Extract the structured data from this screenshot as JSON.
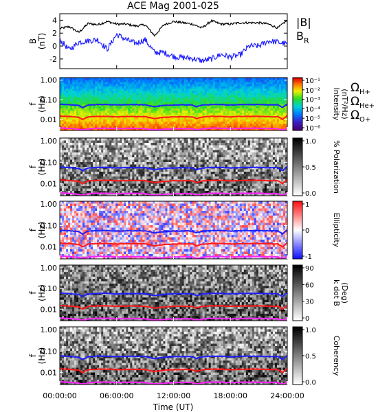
{
  "title": "ACE Mag 2001-025",
  "colors": {
    "B": "#000000",
    "BR": "#1f1fff",
    "H": "#1f1fff",
    "He": "#ff1a1a",
    "O": "#ff22ff",
    "gray_dark": "#111111",
    "gray_light": "#cfcfcf"
  },
  "chart_data": [
    {
      "type": "line",
      "panel": "B",
      "ylabel": "B\n(nT)",
      "ylim": [
        -3.5,
        5
      ],
      "yticks": [
        -2,
        0,
        2,
        4
      ],
      "xlim": [
        0,
        24
      ],
      "legend": [
        "|B|",
        "B_R"
      ],
      "series": [
        {
          "name": "|B|",
          "key": "B",
          "x": [
            0,
            1,
            2,
            3,
            4,
            5,
            6,
            7,
            8,
            9,
            10,
            11,
            12,
            13,
            14,
            15,
            16,
            17,
            18,
            19,
            20,
            21,
            22,
            23,
            24
          ],
          "y": [
            2.7,
            3.0,
            2.1,
            3.5,
            3.3,
            3.8,
            3.4,
            3.4,
            3.1,
            3.3,
            1.6,
            3.3,
            3.8,
            3.6,
            3.4,
            2.8,
            3.9,
            3.4,
            3.4,
            3.6,
            3.6,
            3.6,
            3.4,
            2.8,
            4.0
          ]
        },
        {
          "name": "B_R",
          "key": "BR",
          "x": [
            0,
            1,
            2,
            3,
            4,
            5,
            6,
            7,
            8,
            9,
            10,
            11,
            12,
            13,
            14,
            15,
            16,
            17,
            18,
            19,
            20,
            21,
            22,
            23,
            24
          ],
          "y": [
            1.0,
            -0.6,
            0.6,
            0.8,
            1.0,
            -0.5,
            1.8,
            1.0,
            0.4,
            1.0,
            -1.0,
            -1.0,
            -1.6,
            -1.8,
            -1.9,
            -2.3,
            -2.0,
            -1.3,
            -1.7,
            -1.4,
            0.0,
            0.0,
            0.8,
            0.6,
            0.3
          ]
        }
      ]
    },
    {
      "type": "heatmap",
      "panel": "intensity",
      "ylabel": "f\n(Hz)",
      "yticks": [
        "1.00",
        "0.10",
        "0.01"
      ],
      "colorbar_label": "Intensity\n(nT²/Hz)",
      "colorbar_ticks": [
        "10⁻¹",
        "10⁻²",
        "10⁻³",
        "10⁻⁴",
        "10⁻⁵",
        "10⁻⁶"
      ],
      "legend": [
        "Ω_H+",
        "Ω_He+",
        "Ω_O+"
      ]
    },
    {
      "type": "heatmap",
      "panel": "polarization",
      "ylabel": "f\n(Hz)",
      "yticks": [
        "1.00",
        "0.10",
        "0.01"
      ],
      "colorbar_label": "% Polarization",
      "colorbar_ticks": [
        "1.0",
        "0.5",
        "0.0"
      ]
    },
    {
      "type": "heatmap",
      "panel": "ellipticity",
      "ylabel": "f\n(Hz)",
      "yticks": [
        "1.00",
        "0.10",
        "0.01"
      ],
      "colorbar_label": "Ellipticity",
      "colorbar_ticks": [
        "1",
        "0",
        "-1"
      ]
    },
    {
      "type": "heatmap",
      "panel": "kdotb",
      "ylabel": "f\n(Hz)",
      "yticks": [
        "1.00",
        "0.10",
        "0.01"
      ],
      "colorbar_label": "k dot B\n(Deg)",
      "colorbar_ticks": [
        "90",
        "60",
        "30",
        "0"
      ]
    },
    {
      "type": "heatmap",
      "panel": "coherency",
      "ylabel": "f\n(Hz)",
      "yticks": [
        "1.00",
        "0.10",
        "0.01"
      ],
      "colorbar_label": "Coherency",
      "colorbar_ticks": [
        "1.0",
        "0.5",
        "0.0"
      ]
    }
  ],
  "gyro": {
    "x": [
      0,
      1,
      2,
      2.4,
      3,
      4,
      5,
      6,
      7,
      8,
      9,
      10,
      11,
      12,
      13,
      14,
      14.4,
      15,
      16,
      17,
      18,
      19,
      20,
      21,
      22,
      23,
      23.5,
      24
    ],
    "fH": [
      0.06,
      0.057,
      0.052,
      0.04,
      0.055,
      0.058,
      0.058,
      0.055,
      0.057,
      0.057,
      0.056,
      0.045,
      0.052,
      0.055,
      0.056,
      0.055,
      0.045,
      0.054,
      0.058,
      0.058,
      0.055,
      0.057,
      0.058,
      0.058,
      0.056,
      0.056,
      0.04,
      0.062
    ]
  },
  "xaxis": {
    "ticks": [
      "00:00:00",
      "06:00:00",
      "12:00:00",
      "18:00:00",
      "24:00:00"
    ],
    "tick_hours": [
      0,
      6,
      12,
      18,
      24
    ],
    "label": "Time (UT)"
  }
}
